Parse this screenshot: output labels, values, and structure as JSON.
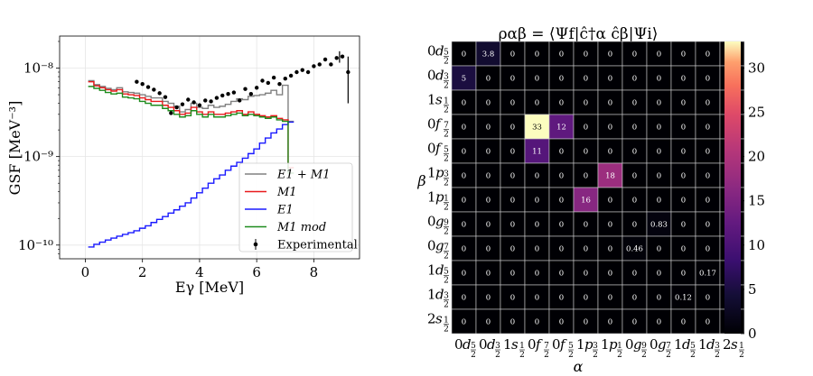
{
  "chart_data": [
    {
      "type": "line",
      "panel": "left",
      "xlabel": "Eγ [MeV]",
      "ylabel": "GSF [MeV⁻³]",
      "xscale": "linear",
      "yscale": "log",
      "xlim": [
        -0.9,
        9.6
      ],
      "ylim": [
        7e-11,
        2.3e-08
      ],
      "xticks": [
        0,
        2,
        4,
        6,
        8
      ],
      "yticks": [
        {
          "value": 1e-10,
          "label": "10⁻¹⁰"
        },
        {
          "value": 1e-09,
          "label": "10⁻⁹"
        },
        {
          "value": 1e-08,
          "label": "10⁻⁸"
        }
      ],
      "grid": true,
      "legend_position": "lower-right",
      "bin_edges": [
        0.1,
        0.3,
        0.5,
        0.7,
        0.9,
        1.1,
        1.3,
        1.5,
        1.7,
        1.9,
        2.1,
        2.3,
        2.5,
        2.7,
        2.9,
        3.1,
        3.3,
        3.5,
        3.7,
        3.9,
        4.1,
        4.3,
        4.5,
        4.7,
        4.9,
        5.1,
        5.3,
        5.5,
        5.7,
        5.9,
        6.1,
        6.3,
        6.5,
        6.7,
        6.9,
        7.1,
        7.3
      ],
      "series": [
        {
          "name": "E1 + M1",
          "kind": "step",
          "color": "#808080",
          "values": [
            7.2e-09,
            6.5e-09,
            6.2e-09,
            5.9e-09,
            5.7e-09,
            6e-09,
            5.4e-09,
            5.3e-09,
            5.2e-09,
            5e-09,
            4.8e-09,
            4.6e-09,
            4.6e-09,
            4.2e-09,
            4e-09,
            3.7e-09,
            3.2e-09,
            3.4e-09,
            4e-09,
            3.6e-09,
            3.5e-09,
            3.8e-09,
            3.6e-09,
            3.7e-09,
            3.9e-09,
            4.2e-09,
            4.5e-09,
            4.4e-09,
            4.8e-09,
            4.9e-09,
            5e-09,
            5.2e-09,
            5.6e-09,
            5e-09,
            6.4e-09,
            2.5e-09
          ]
        },
        {
          "name": "M1",
          "kind": "step",
          "color": "#e8191b",
          "values": [
            7e-09,
            6.3e-09,
            6e-09,
            5.7e-09,
            5.5e-09,
            5.7e-09,
            5.1e-09,
            5e-09,
            4.9e-09,
            4.6e-09,
            4.4e-09,
            4.2e-09,
            4.2e-09,
            3.8e-09,
            3.6e-09,
            3.3e-09,
            3e-09,
            3.1e-09,
            3.6e-09,
            3.2e-09,
            3e-09,
            3.2e-09,
            3e-09,
            3e-09,
            3.1e-09,
            3.2e-09,
            3.3e-09,
            3e-09,
            3.2e-09,
            3e-09,
            2.9e-09,
            2.8e-09,
            2.9e-09,
            2.7e-09,
            2.6e-09,
            7.5e-10
          ]
        },
        {
          "name": "E1",
          "kind": "step",
          "color": "#1a1aff",
          "values": [
            9.5e-11,
            1.02e-10,
            1.08e-10,
            1.14e-10,
            1.2e-10,
            1.26e-10,
            1.32e-10,
            1.38e-10,
            1.45e-10,
            1.55e-10,
            1.65e-10,
            1.8e-10,
            1.95e-10,
            2.1e-10,
            2.3e-10,
            2.5e-10,
            2.75e-10,
            3e-10,
            3.4e-10,
            3.9e-10,
            4.4e-10,
            5e-10,
            5.6e-10,
            6.2e-10,
            7e-10,
            7.8e-10,
            8.6e-10,
            9.6e-10,
            1.08e-09,
            1.22e-09,
            1.42e-09,
            1.62e-09,
            1.85e-09,
            2.05e-09,
            2.3e-09,
            2.45e-09
          ]
        },
        {
          "name": "M1 mod",
          "kind": "step",
          "color": "#1e8c1e",
          "values": [
            6.2e-09,
            5.9e-09,
            5.6e-09,
            5.3e-09,
            5.1e-09,
            5.2e-09,
            4.7e-09,
            4.6e-09,
            4.5e-09,
            4.2e-09,
            4e-09,
            3.8e-09,
            3.8e-09,
            3.5e-09,
            3.3e-09,
            3e-09,
            2.8e-09,
            2.9e-09,
            3.3e-09,
            3e-09,
            2.8e-09,
            3e-09,
            2.8e-09,
            2.8e-09,
            2.9e-09,
            3e-09,
            3.1e-09,
            2.9e-09,
            3e-09,
            2.9e-09,
            2.8e-09,
            2.7e-09,
            2.8e-09,
            2.6e-09,
            2.5e-09,
            6.5e-10
          ]
        },
        {
          "name": "Experimental",
          "kind": "scatter",
          "color": "#000000",
          "x": [
            1.8,
            2.0,
            2.2,
            2.4,
            2.6,
            2.8,
            3.0,
            3.2,
            3.4,
            3.6,
            3.8,
            4.0,
            4.2,
            4.4,
            4.6,
            4.8,
            5.0,
            5.2,
            5.4,
            5.6,
            5.8,
            6.0,
            6.2,
            6.4,
            6.6,
            6.8,
            7.0,
            7.2,
            7.4,
            7.6,
            7.8,
            8.0,
            8.2,
            8.4,
            8.6,
            8.8,
            9.0,
            9.2
          ],
          "y": [
            7e-09,
            6.6e-09,
            6.1e-09,
            5.7e-09,
            5.2e-09,
            4.7e-09,
            3.1e-09,
            3.6e-09,
            3.9e-09,
            4.4e-09,
            4.1e-09,
            3.8e-09,
            4.3e-09,
            4.2e-09,
            4.6e-09,
            4.9e-09,
            5.1e-09,
            5.3e-09,
            4.3e-09,
            5.8e-09,
            5.1e-09,
            6e-09,
            7.2e-09,
            6.8e-09,
            7.8e-09,
            6.6e-09,
            7.6e-09,
            8.2e-09,
            9e-09,
            9.5e-09,
            9e-09,
            1.05e-08,
            1.1e-08,
            1.25e-08,
            1.1e-08,
            1.3e-08,
            1.35e-08,
            9e-09
          ],
          "errorbars": [
            {
              "x": 8.9,
              "low": 1.15e-08,
              "high": 1.55e-08
            },
            {
              "x": 9.2,
              "low": 4e-09,
              "high": 1.35e-08
            }
          ]
        }
      ]
    },
    {
      "type": "heatmap",
      "panel": "right",
      "title": "ραβ = ⟨Ψf|ĉ†α ĉβ|Ψi⟩",
      "xlabel": "α",
      "ylabel": "β",
      "orbitals": [
        {
          "n": "0",
          "l": "d",
          "num": "5",
          "den": "2"
        },
        {
          "n": "0",
          "l": "d",
          "num": "3",
          "den": "2"
        },
        {
          "n": "1",
          "l": "s",
          "num": "1",
          "den": "2"
        },
        {
          "n": "0",
          "l": "f",
          "num": "7",
          "den": "2"
        },
        {
          "n": "0",
          "l": "f",
          "num": "5",
          "den": "2"
        },
        {
          "n": "1",
          "l": "p",
          "num": "3",
          "den": "2"
        },
        {
          "n": "1",
          "l": "p",
          "num": "1",
          "den": "2"
        },
        {
          "n": "0",
          "l": "g",
          "num": "9",
          "den": "2"
        },
        {
          "n": "0",
          "l": "g",
          "num": "7",
          "den": "2"
        },
        {
          "n": "1",
          "l": "d",
          "num": "5",
          "den": "2"
        },
        {
          "n": "1",
          "l": "d",
          "num": "3",
          "den": "2"
        },
        {
          "n": "2",
          "l": "s",
          "num": "1",
          "den": "2"
        }
      ],
      "values": [
        [
          0,
          3.8,
          0,
          0,
          0,
          0,
          0,
          0,
          0,
          0,
          0,
          0
        ],
        [
          5,
          0,
          0,
          0,
          0,
          0,
          0,
          0,
          0,
          0,
          0,
          0
        ],
        [
          0,
          0,
          0,
          0,
          0,
          0,
          0,
          0,
          0,
          0,
          0,
          0
        ],
        [
          0,
          0,
          0,
          33,
          12,
          0,
          0,
          0,
          0,
          0,
          0,
          0
        ],
        [
          0,
          0,
          0,
          11,
          0,
          0,
          0,
          0,
          0,
          0,
          0,
          0
        ],
        [
          0,
          0,
          0,
          0,
          0,
          0,
          18,
          0,
          0,
          0,
          0,
          0
        ],
        [
          0,
          0,
          0,
          0,
          0,
          16,
          0,
          0,
          0,
          0,
          0,
          0
        ],
        [
          0,
          0,
          0,
          0,
          0,
          0,
          0,
          0,
          0.83,
          0,
          0,
          0
        ],
        [
          0,
          0,
          0,
          0,
          0,
          0,
          0,
          0.46,
          0,
          0,
          0,
          0
        ],
        [
          0,
          0,
          0,
          0,
          0,
          0,
          0,
          0,
          0,
          0,
          0.17,
          0
        ],
        [
          0,
          0,
          0,
          0,
          0,
          0,
          0,
          0,
          0,
          0.12,
          0,
          0
        ],
        [
          0,
          0,
          0,
          0,
          0,
          0,
          0,
          0,
          0,
          0,
          0,
          0
        ]
      ],
      "colorbar": {
        "min": 0,
        "max": 33,
        "ticks": [
          0,
          5,
          10,
          15,
          20,
          25,
          30
        ],
        "colormap": "magma"
      }
    }
  ]
}
